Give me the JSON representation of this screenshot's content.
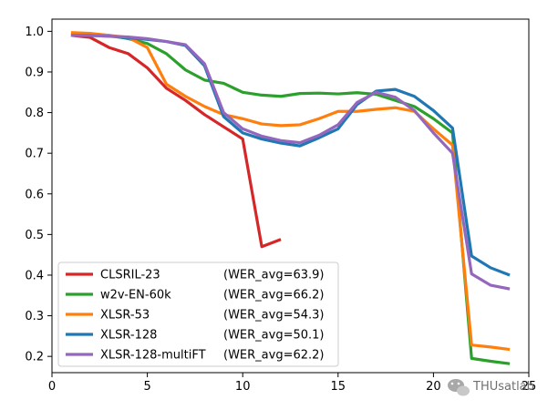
{
  "chart_data": {
    "type": "line",
    "title": "",
    "xlabel": "",
    "ylabel": "",
    "xlim": [
      0,
      25
    ],
    "ylim": [
      0.16,
      1.03
    ],
    "xticks": [
      0,
      5,
      10,
      15,
      20,
      25
    ],
    "xtick_labels": [
      "0",
      "5",
      "10",
      "15",
      "20",
      "25"
    ],
    "yticks": [
      0.2,
      0.3,
      0.4,
      0.5,
      0.6,
      0.7,
      0.8,
      0.9,
      1.0
    ],
    "ytick_labels": [
      "0.2",
      "0.3",
      "0.4",
      "0.5",
      "0.6",
      "0.7",
      "0.8",
      "0.9",
      "1.0"
    ],
    "grid": false,
    "legend_position": "lower-left",
    "series": [
      {
        "name": "CLSRIL-23",
        "wer_label": "(WER_avg=63.9)",
        "color": "#d62728",
        "x": [
          1,
          2,
          3,
          4,
          5,
          6,
          7,
          8,
          9,
          10,
          11,
          12
        ],
        "y": [
          0.99,
          0.985,
          0.96,
          0.945,
          0.91,
          0.86,
          0.83,
          0.795,
          0.765,
          0.735,
          0.47,
          0.488
        ]
      },
      {
        "name": "w2v-EN-60k",
        "wer_label": "(WER_avg=66.2)",
        "color": "#2ca02c",
        "x": [
          1,
          2,
          3,
          4,
          5,
          6,
          7,
          8,
          9,
          10,
          11,
          12,
          13,
          14,
          15,
          16,
          17,
          18,
          19,
          20,
          21,
          22,
          23,
          24
        ],
        "y": [
          0.995,
          0.993,
          0.99,
          0.982,
          0.97,
          0.945,
          0.905,
          0.88,
          0.872,
          0.85,
          0.843,
          0.84,
          0.847,
          0.848,
          0.846,
          0.849,
          0.845,
          0.83,
          0.815,
          0.785,
          0.75,
          0.195,
          0.188,
          0.182
        ]
      },
      {
        "name": "XLSR-53",
        "wer_label": "(WER_avg=54.3)",
        "color": "#ff7f0e",
        "x": [
          1,
          2,
          3,
          4,
          5,
          6,
          7,
          8,
          9,
          10,
          11,
          12,
          13,
          14,
          15,
          16,
          17,
          18,
          19,
          20,
          21,
          22,
          23,
          24
        ],
        "y": [
          0.997,
          0.995,
          0.99,
          0.985,
          0.96,
          0.87,
          0.84,
          0.815,
          0.795,
          0.785,
          0.772,
          0.768,
          0.77,
          0.785,
          0.803,
          0.803,
          0.808,
          0.812,
          0.803,
          0.76,
          0.72,
          0.228,
          0.223,
          0.217
        ]
      },
      {
        "name": "XLSR-128",
        "wer_label": "(WER_avg=50.1)",
        "color": "#1f77b4",
        "x": [
          1,
          2,
          3,
          4,
          5,
          6,
          7,
          8,
          9,
          10,
          11,
          12,
          13,
          14,
          15,
          16,
          17,
          18,
          19,
          20,
          21,
          22,
          23,
          24
        ],
        "y": [
          0.99,
          0.99,
          0.988,
          0.984,
          0.98,
          0.975,
          0.965,
          0.915,
          0.79,
          0.75,
          0.735,
          0.725,
          0.718,
          0.738,
          0.76,
          0.82,
          0.853,
          0.857,
          0.84,
          0.805,
          0.762,
          0.447,
          0.418,
          0.4
        ]
      },
      {
        "name": "XLSR-128-multiFT",
        "wer_label": "(WER_avg=62.2)",
        "color": "#9467bd",
        "x": [
          1,
          2,
          3,
          4,
          5,
          6,
          7,
          8,
          9,
          10,
          11,
          12,
          13,
          14,
          15,
          16,
          17,
          18,
          19,
          20,
          21,
          22,
          23,
          24
        ],
        "y": [
          0.99,
          0.99,
          0.988,
          0.986,
          0.982,
          0.975,
          0.967,
          0.92,
          0.8,
          0.76,
          0.742,
          0.731,
          0.726,
          0.744,
          0.77,
          0.825,
          0.85,
          0.838,
          0.805,
          0.75,
          0.7,
          0.403,
          0.375,
          0.366
        ]
      }
    ]
  },
  "watermark": {
    "text": "THUsatlab",
    "icon": "wechat-icon"
  }
}
